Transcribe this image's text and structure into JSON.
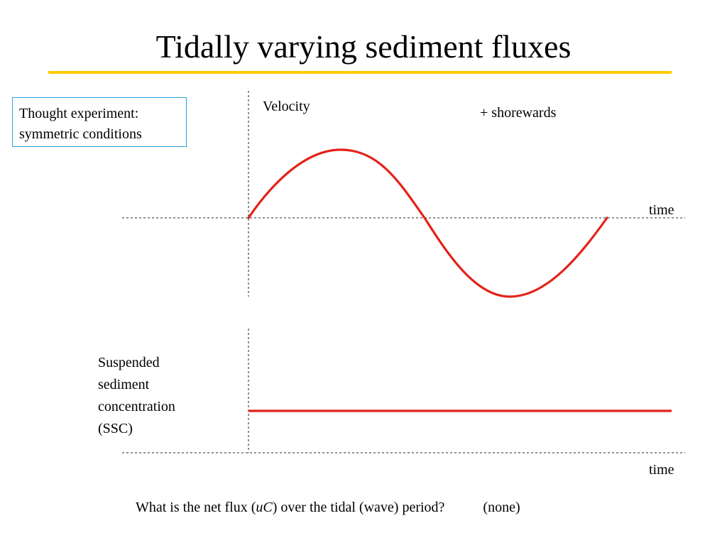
{
  "title": "Tidally varying sediment fluxes",
  "note": {
    "line1": "Thought experiment:",
    "line2": "symmetric conditions"
  },
  "velocity_panel": {
    "label": "Velocity",
    "direction_note": "+ shorewards",
    "x_label": "time"
  },
  "ssc_panel": {
    "label_lines": [
      "Suspended",
      "sediment",
      "concentration",
      "(SSC)"
    ],
    "x_label": "time"
  },
  "question": {
    "before": "What is the net flux  (",
    "u": "u",
    "C": "C",
    "after": ") over the tidal (wave) period?",
    "answer": "(none)"
  },
  "colors": {
    "accent_rule": "#ffcc00",
    "curve": "#e32219",
    "box_border": "#29a3d9",
    "axis": "#555555"
  }
}
